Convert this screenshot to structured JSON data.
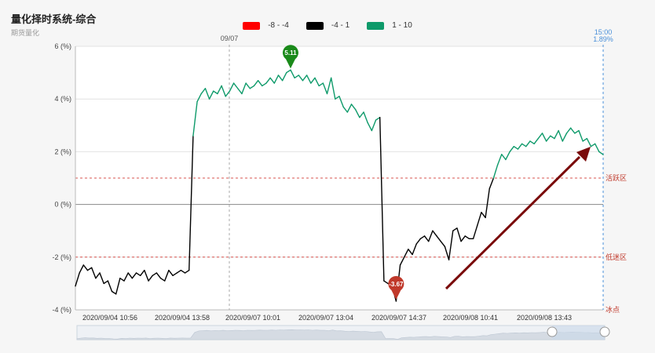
{
  "header": {
    "title": "量化择时系统-综合",
    "subtitle": "期货量化"
  },
  "legend": [
    {
      "label": "-8 - -4",
      "color": "#ff0000"
    },
    {
      "label": "-4 - 1",
      "color": "#000000"
    },
    {
      "label": "1 - 10",
      "color": "#0e9a6a"
    }
  ],
  "chart_data": {
    "type": "line",
    "ylim": [
      -4,
      6
    ],
    "y_ticks": [
      "6 (%)",
      "4 (%)",
      "2 (%)",
      "0 (%)",
      "-2 (%)",
      "-4 (%)"
    ],
    "x_tick_labels": [
      "2020/09/04 10:56",
      "2020/09/04 13:58",
      "2020/09/07 10:01",
      "2020/09/07 13:04",
      "2020/09/07 14:37",
      "2020/09/08 10:41",
      "2020/09/08 13:43"
    ],
    "grid": true,
    "zones": [
      {
        "label": "活跃区",
        "value": 1
      },
      {
        "label": "低迷区",
        "value": -2
      },
      {
        "label": "冰点",
        "value": -4
      }
    ],
    "markers": {
      "date_marker": "09/07",
      "end_time": "15:00",
      "end_value": "1.89%"
    },
    "annotations": {
      "max": {
        "label": "5.11",
        "value": 5.11
      },
      "min": {
        "label": "-3.67",
        "value": -3.67
      }
    },
    "series": [
      {
        "values": [
          -3.1,
          -2.6,
          -2.3,
          -2.5,
          -2.4,
          -2.8,
          -2.6,
          -3.0,
          -2.9,
          -3.3,
          -3.4,
          -2.8,
          -2.9,
          -2.6,
          -2.8,
          -2.6,
          -2.7,
          -2.5,
          -2.9,
          -2.7,
          -2.6,
          -2.8,
          -2.9,
          -2.5,
          -2.7,
          -2.6,
          -2.5,
          -2.6,
          -2.5,
          2.6,
          3.9,
          4.2,
          4.4,
          4.0,
          4.3,
          4.2,
          4.5,
          4.1,
          4.3,
          4.6,
          4.4,
          4.2,
          4.6,
          4.4,
          4.5,
          4.7,
          4.5,
          4.6,
          4.8,
          4.6,
          4.9,
          4.7,
          5.0,
          5.1,
          4.8,
          4.9,
          4.7,
          4.9,
          4.6,
          4.8,
          4.5,
          4.6,
          4.2,
          4.8,
          4.0,
          4.1,
          3.7,
          3.5,
          3.8,
          3.6,
          3.3,
          3.5,
          3.1,
          2.8,
          3.2,
          3.3,
          -2.9,
          -3.0,
          -3.1,
          -3.67,
          -2.3,
          -2.0,
          -1.7,
          -1.9,
          -1.5,
          -1.3,
          -1.2,
          -1.4,
          -1.0,
          -1.2,
          -1.4,
          -1.6,
          -2.1,
          -1.0,
          -0.9,
          -1.4,
          -1.2,
          -1.3,
          -1.3,
          -0.8,
          -0.3,
          -0.5,
          0.6,
          1.0,
          1.5,
          1.9,
          1.7,
          2.0,
          2.2,
          2.1,
          2.3,
          2.2,
          2.4,
          2.3,
          2.5,
          2.7,
          2.4,
          2.6,
          2.5,
          2.8,
          2.4,
          2.7,
          2.9,
          2.7,
          2.8,
          2.4,
          2.5,
          2.2,
          2.3,
          2.0,
          1.89
        ]
      }
    ]
  },
  "arrow_annotation": {
    "color": "#7a0b0b"
  }
}
